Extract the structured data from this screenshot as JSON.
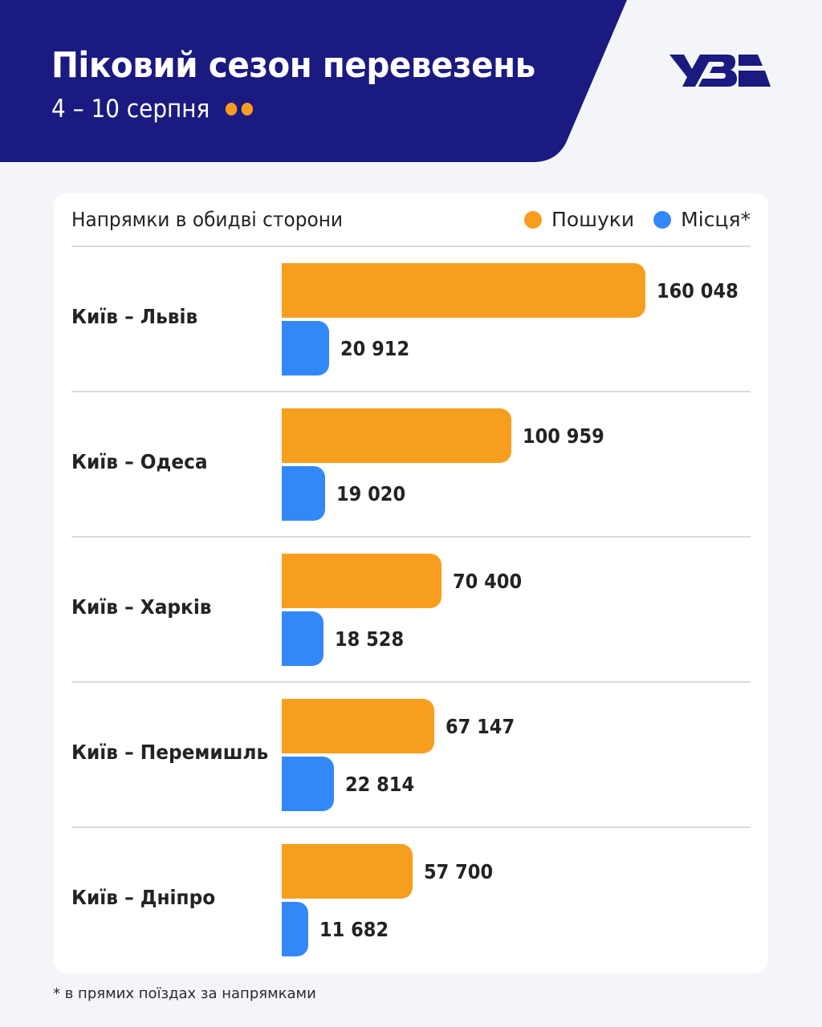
{
  "header": {
    "title": "Піковий сезон перевезень",
    "subtitle": "4 – 10 серпня",
    "logo": "УЗ",
    "logo_icon": "ukrzaliznytsia-logo-icon"
  },
  "card": {
    "title": "Напрямки в обидві сторони",
    "legend": [
      {
        "label": "Пошуки",
        "color": "#f89e1f"
      },
      {
        "label": "Місця*",
        "color": "#3388f8"
      }
    ]
  },
  "footnote": "* в прямих поїздах за напрямками",
  "colors": {
    "header_bg": "#1a1a80",
    "searches": "#f89e1f",
    "seats": "#3388f8",
    "page_bg": "#f4f5f8"
  },
  "chart_data": {
    "type": "bar",
    "orientation": "horizontal",
    "title": "Піковий сезон перевезень",
    "subtitle": "4 – 10 серпня",
    "panel_title": "Напрямки в обидві сторони",
    "categories": [
      "Київ – Львів",
      "Київ – Одеса",
      "Київ – Харків",
      "Київ – Перемишль",
      "Київ – Дніпро"
    ],
    "series": [
      {
        "name": "Пошуки",
        "color": "#f89e1f",
        "values": [
          160048,
          100959,
          70400,
          67147,
          57700
        ],
        "labels": [
          "160 048",
          "100 959",
          "70 400",
          "67 147",
          "57 700"
        ]
      },
      {
        "name": "Місця*",
        "color": "#3388f8",
        "values": [
          20912,
          19020,
          18528,
          22814,
          11682
        ],
        "labels": [
          "20 912",
          "19 020",
          "18 528",
          "22 814",
          "11 682"
        ]
      }
    ],
    "xlabel": "",
    "ylabel": "",
    "xlim": [
      0,
      160048
    ],
    "grid": false,
    "legend_position": "top-right",
    "data_labels": true,
    "footnote": "* в прямих поїздах за напрямками"
  }
}
